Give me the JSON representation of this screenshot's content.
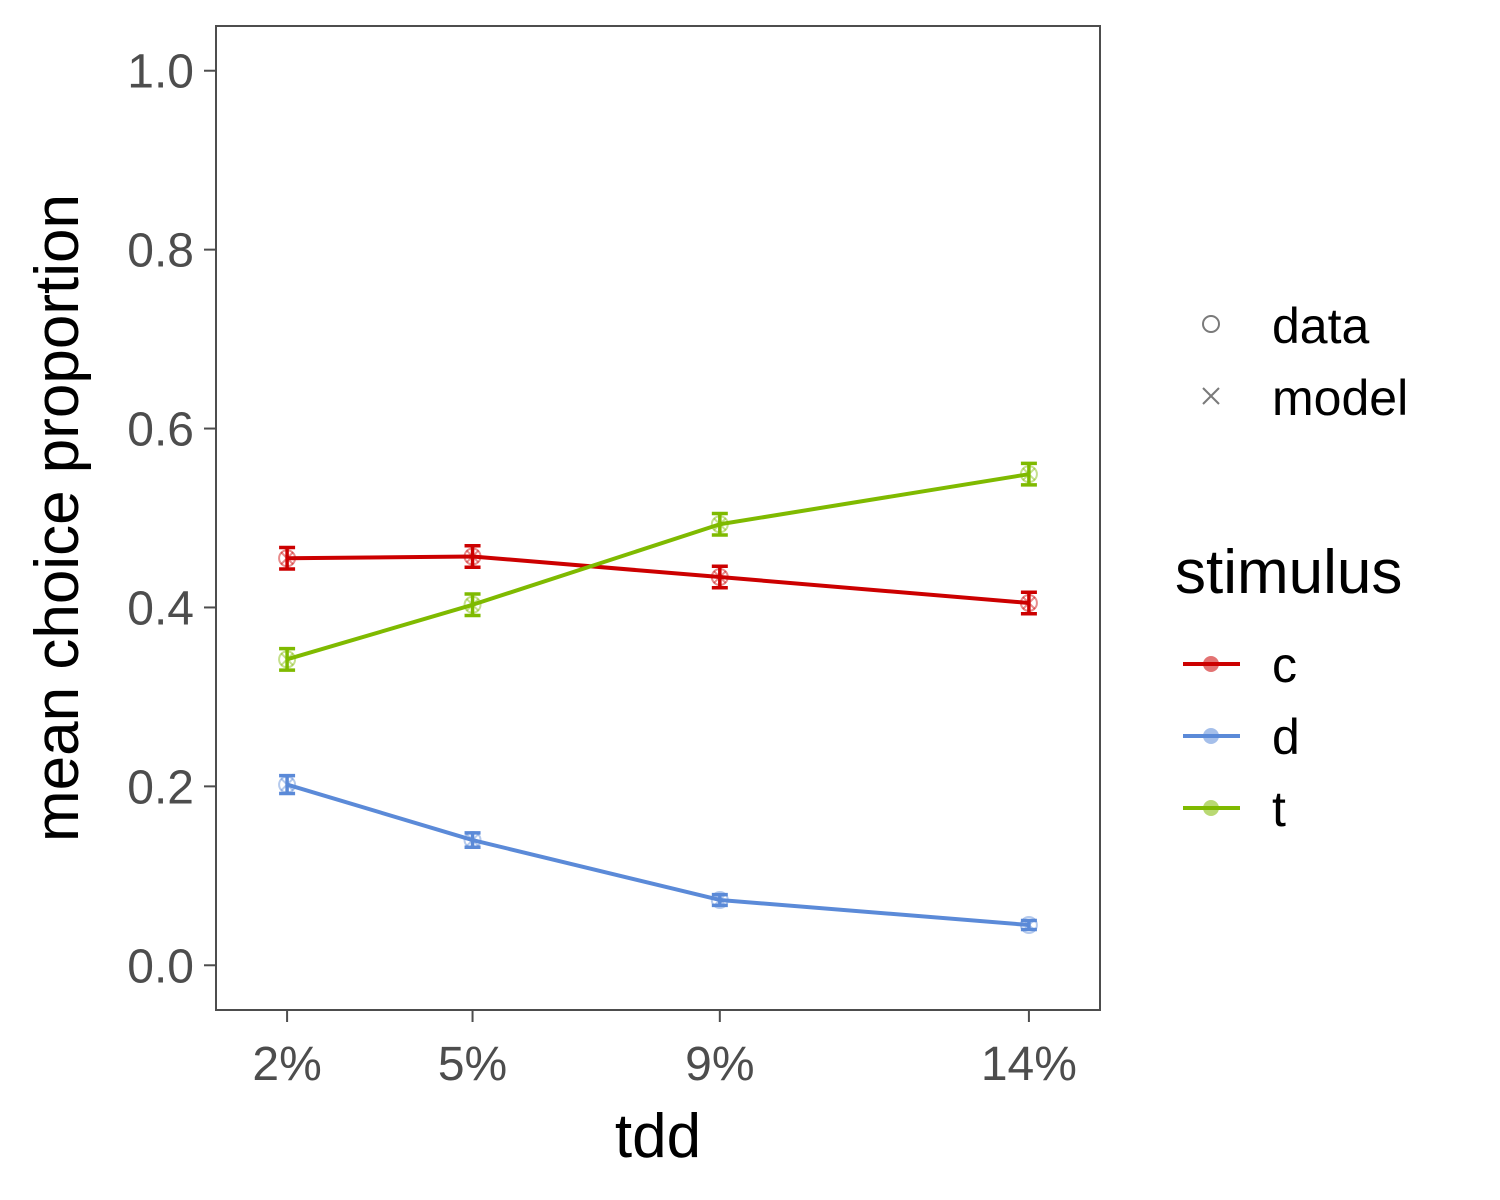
{
  "chart_data": {
    "type": "line",
    "xlabel": "tdd",
    "ylabel": "mean choice proportion",
    "categories": [
      "2%",
      "5%",
      "9%",
      "14%"
    ],
    "x": [
      2,
      5,
      9,
      14
    ],
    "xlim": [
      0.85,
      15.15
    ],
    "ylim": [
      -0.05,
      1.05
    ],
    "yticks": [
      0.0,
      0.2,
      0.4,
      0.6,
      0.8,
      1.0
    ],
    "ytick_labels": [
      "0.0",
      "0.2",
      "0.4",
      "0.6",
      "0.8",
      "1.0"
    ],
    "grid": false,
    "legend": {
      "placement": "right",
      "shape_entries": [
        {
          "label": "data",
          "symbol": "circle-icon"
        },
        {
          "label": "model",
          "symbol": "cross-icon"
        }
      ],
      "color_title": "stimulus"
    },
    "series": [
      {
        "name": "c",
        "color": "#cc0000",
        "values": [
          0.455,
          0.457,
          0.434,
          0.405
        ],
        "error": [
          0.012,
          0.012,
          0.012,
          0.012
        ]
      },
      {
        "name": "d",
        "color": "#5b8ad8",
        "values": [
          0.202,
          0.14,
          0.073,
          0.045
        ],
        "error": [
          0.01,
          0.008,
          0.006,
          0.005
        ]
      },
      {
        "name": "t",
        "color": "#7fba00",
        "values": [
          0.342,
          0.403,
          0.493,
          0.549
        ],
        "error": [
          0.012,
          0.012,
          0.012,
          0.012
        ]
      }
    ]
  }
}
